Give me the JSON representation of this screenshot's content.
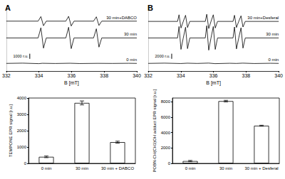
{
  "chart_data": [
    {
      "type": "line",
      "title": "A",
      "xlabel": "B [mT]",
      "xlim": [
        332,
        340
      ],
      "xticks": [
        332,
        334,
        336,
        338,
        340
      ],
      "ylim": [
        0,
        12000
      ],
      "yticks": [],
      "tick_labels": "x",
      "grid": false,
      "scale_bar": {
        "value": 1000,
        "label": "1000 r.u."
      },
      "series": [
        {
          "name": "0 min",
          "color": "#000000",
          "x": [
            332,
            333,
            334,
            334.2,
            335,
            335.9,
            336.5,
            337.6,
            338.5,
            339.5,
            340
          ],
          "values": [
            1500,
            1550,
            1450,
            1520,
            1480,
            1530,
            1470,
            1510,
            1490,
            1520,
            1500
          ]
        },
        {
          "name": "30 min",
          "color": "#000000",
          "x": [
            332,
            333.95,
            334.12,
            334.28,
            334.45,
            335.65,
            335.82,
            335.98,
            336.15,
            337.35,
            337.52,
            337.68,
            337.85,
            340
          ],
          "values": [
            6500,
            6500,
            8500,
            4500,
            6500,
            6500,
            8600,
            4400,
            6500,
            6500,
            8300,
            4700,
            6500,
            6500
          ]
        },
        {
          "name": "30 min+DABCO",
          "color": "#000000",
          "x": [
            332,
            333.95,
            334.12,
            334.28,
            334.45,
            335.65,
            335.82,
            335.98,
            336.15,
            337.35,
            337.52,
            337.68,
            337.85,
            340
          ],
          "values": [
            9800,
            9800,
            10700,
            8900,
            9800,
            9800,
            10750,
            8850,
            9800,
            9800,
            10650,
            8950,
            9800,
            9800
          ]
        }
      ]
    },
    {
      "type": "bar",
      "ylabel": "TEMPONE EPR signal [r.u.]",
      "categories": [
        "0 min",
        "30 min",
        "30 min + DABCO"
      ],
      "values": [
        400,
        3700,
        1300
      ],
      "errors": [
        50,
        120,
        60
      ],
      "color": "#ffffff",
      "ylim": [
        0,
        4000
      ],
      "yticks": [
        0,
        1000,
        2000,
        3000,
        4000
      ],
      "grid": false
    },
    {
      "type": "line",
      "title": "B",
      "xlabel": "B [mT]",
      "xlim": [
        332,
        340
      ],
      "xticks": [
        332,
        334,
        336,
        338,
        340
      ],
      "ylim": [
        0,
        24000
      ],
      "yticks": [],
      "tick_labels": "x",
      "grid": false,
      "scale_bar": {
        "value": 2000,
        "label": "2000 r.u."
      },
      "series": [
        {
          "name": "0 min",
          "color": "#000000",
          "x": [
            332,
            333,
            334,
            334.4,
            335,
            335.7,
            336.1,
            337,
            337.4,
            337.8,
            338.5,
            339.5,
            340
          ],
          "values": [
            3000,
            3100,
            2950,
            3080,
            2980,
            3120,
            2900,
            3050,
            2980,
            3100,
            2950,
            3050,
            3000
          ]
        },
        {
          "name": "30 min",
          "color": "#000000",
          "x": [
            332,
            333.8,
            333.89,
            334.01,
            334.15,
            334.29,
            334.41,
            334.55,
            335.5,
            335.59,
            335.71,
            335.85,
            335.99,
            336.11,
            336.25,
            337.2,
            337.29,
            337.41,
            337.55,
            337.69,
            337.81,
            337.95,
            340
          ],
          "values": [
            13000,
            13000,
            17500,
            8500,
            13000,
            17200,
            8800,
            13000,
            13000,
            17800,
            8200,
            13000,
            17500,
            8500,
            13000,
            13000,
            17300,
            8700,
            13000,
            17000,
            9000,
            13000,
            13000
          ]
        },
        {
          "name": "30 min+Desferal",
          "color": "#000000",
          "x": [
            332,
            333.8,
            333.89,
            334.01,
            334.15,
            334.29,
            334.41,
            334.55,
            335.5,
            335.59,
            335.71,
            335.85,
            335.99,
            336.11,
            336.25,
            337.2,
            337.29,
            337.41,
            337.55,
            337.69,
            337.81,
            337.95,
            340
          ],
          "values": [
            19500,
            19500,
            22100,
            16900,
            19500,
            21900,
            17100,
            19500,
            19500,
            22300,
            16700,
            19500,
            22100,
            16900,
            19500,
            19500,
            21900,
            17100,
            19500,
            21700,
            17300,
            19500,
            19500
          ]
        }
      ]
    },
    {
      "type": "bar",
      "ylabel": "POBN-CH(CH3)OH adduct EPR signal [r.u.]",
      "categories": [
        "0 min",
        "30 min",
        "30 min + Desferal"
      ],
      "values": [
        300,
        8100,
        4900
      ],
      "errors": [
        80,
        100,
        60
      ],
      "color": "#ffffff",
      "ylim": [
        0,
        8500
      ],
      "yticks": [
        0,
        2000,
        4000,
        6000,
        8000
      ],
      "grid": false
    }
  ]
}
